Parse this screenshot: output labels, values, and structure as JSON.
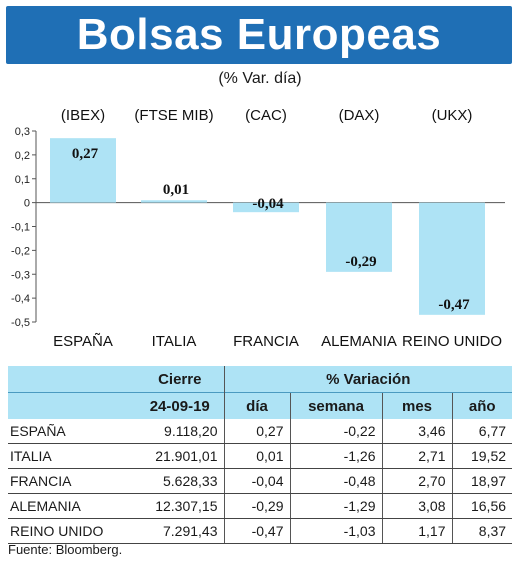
{
  "title": "Bolsas Europeas",
  "subtitle": "(% Var. día)",
  "source": "Fuente: Bloomberg.",
  "colors": {
    "banner": "#1f6fb5",
    "bar": "#aee3f5",
    "table_header": "#aee3f5"
  },
  "chart_data": {
    "type": "bar",
    "title": "Bolsas Europeas",
    "subtitle": "(% Var. día)",
    "indices": [
      "(IBEX)",
      "(FTSE MIB)",
      "(CAC)",
      "(DAX)",
      "(UKX)"
    ],
    "categories": [
      "ESPAÑA",
      "ITALIA",
      "FRANCIA",
      "ALEMANIA",
      "REINO UNIDO"
    ],
    "values": [
      0.27,
      0.01,
      -0.04,
      -0.29,
      -0.47
    ],
    "value_labels": [
      "0,27",
      "0,01",
      "-0,04",
      "-0,29",
      "-0,47"
    ],
    "yticks": [
      "0,3",
      "0,2",
      "0,1",
      "0",
      "-0,1",
      "-0,2",
      "-0,3",
      "-0,4",
      "-0,5"
    ],
    "ylim": [
      -0.5,
      0.3
    ],
    "grid": false,
    "legend": "none"
  },
  "table": {
    "group_headers": {
      "cierre": "Cierre",
      "variacion": "% Variación"
    },
    "columns": [
      "24-09-19",
      "día",
      "semana",
      "mes",
      "año"
    ],
    "rows": [
      {
        "name": "ESPAÑA",
        "cierre": "9.118,20",
        "dia": "0,27",
        "semana": "-0,22",
        "mes": "3,46",
        "ano": "6,77"
      },
      {
        "name": "ITALIA",
        "cierre": "21.901,01",
        "dia": "0,01",
        "semana": "-1,26",
        "mes": "2,71",
        "ano": "19,52"
      },
      {
        "name": "FRANCIA",
        "cierre": "5.628,33",
        "dia": "-0,04",
        "semana": "-0,48",
        "mes": "2,70",
        "ano": "18,97"
      },
      {
        "name": "ALEMANIA",
        "cierre": "12.307,15",
        "dia": "-0,29",
        "semana": "-1,29",
        "mes": "3,08",
        "ano": "16,56"
      },
      {
        "name": "REINO UNIDO",
        "cierre": "7.291,43",
        "dia": "-0,47",
        "semana": "-1,03",
        "mes": "1,17",
        "ano": "8,37"
      }
    ]
  }
}
